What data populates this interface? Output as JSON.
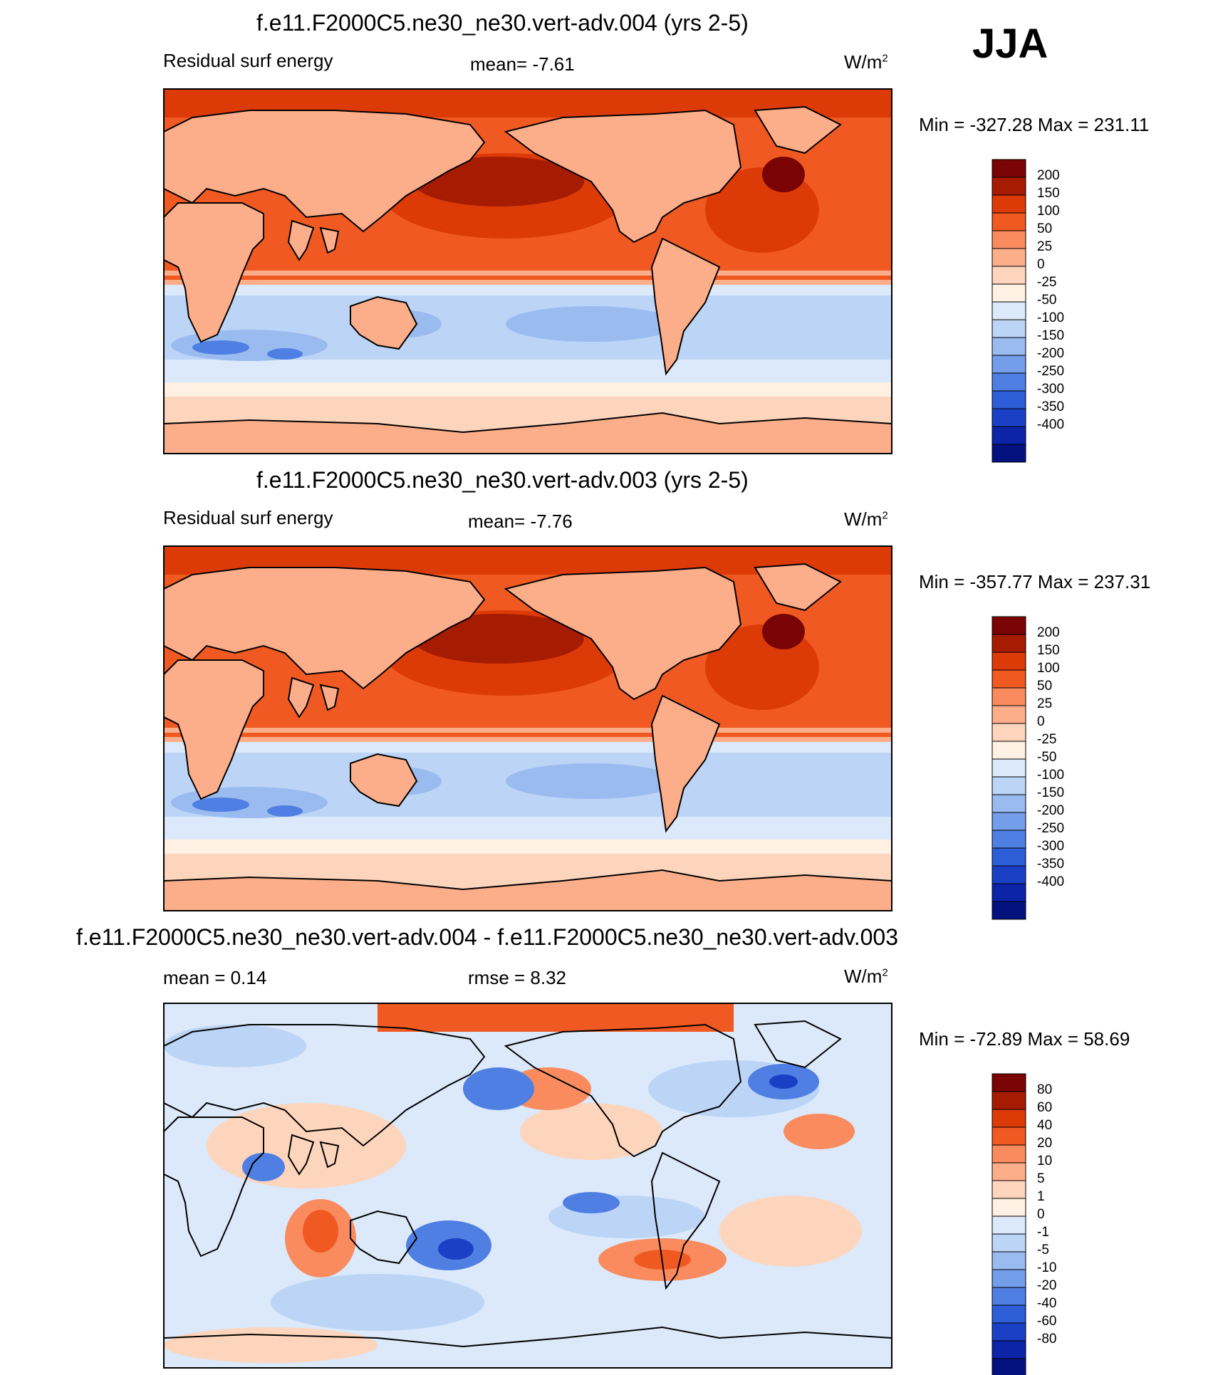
{
  "season": "JJA",
  "units_base": "W/m",
  "units_exp": "2",
  "panels": [
    {
      "title": "f.e11.F2000C5.ne30_ne30.vert-adv.004 (yrs 2-5)",
      "left_label": "Residual surf energy",
      "center_label": "mean=  -7.61",
      "minmax": "Min = -327.28 Max = 231.11"
    },
    {
      "title": "f.e11.F2000C5.ne30_ne30.vert-adv.003 (yrs 2-5)",
      "left_label": "Residual surf energy",
      "center_label": "mean=  -7.76",
      "minmax": "Min = -357.77 Max = 237.31"
    },
    {
      "title": "f.e11.F2000C5.ne30_ne30.vert-adv.004 - f.e11.F2000C5.ne30_ne30.vert-adv.003",
      "left_label": "mean =   0.14",
      "center_label": "rmse =   8.32",
      "minmax": "Min = -72.89 Max =  58.69"
    }
  ],
  "colors": {
    "abs_scale": [
      "#7a0403",
      "#a61c03",
      "#dc3b08",
      "#f05a22",
      "#f98b5e",
      "#fcae8a",
      "#fdd5bd",
      "#fef0e2",
      "#dbe9fa",
      "#bcd4f6",
      "#99bbf0",
      "#749ee9",
      "#4f7fe2",
      "#2d5ed8",
      "#1a40c6",
      "#0c24a8",
      "#03127f"
    ],
    "diff_scale": [
      "#7a0403",
      "#a61c03",
      "#dc3b08",
      "#f05a22",
      "#f98b5e",
      "#fcae8a",
      "#fdd5bd",
      "#fef0e2",
      "#dbe9fa",
      "#bcd4f6",
      "#99bbf0",
      "#749ee9",
      "#4f7fe2",
      "#2d5ed8",
      "#1a40c6",
      "#0c24a8",
      "#03127f"
    ]
  },
  "chart_data": [
    {
      "type": "heatmap",
      "title": "f.e11.F2000C5.ne30_ne30.vert-adv.004 (yrs 2-5)",
      "variable": "Residual surf energy",
      "units": "W/m2",
      "mean": -7.61,
      "min": -327.28,
      "max": 231.11,
      "colorbar_levels": [
        "200",
        "150",
        "100",
        "50",
        "25",
        "0",
        "-25",
        "-50",
        "-100",
        "-150",
        "-200",
        "-250",
        "-300",
        "-350",
        "-400"
      ]
    },
    {
      "type": "heatmap",
      "title": "f.e11.F2000C5.ne30_ne30.vert-adv.003 (yrs 2-5)",
      "variable": "Residual surf energy",
      "units": "W/m2",
      "mean": -7.76,
      "min": -357.77,
      "max": 237.31,
      "colorbar_levels": [
        "200",
        "150",
        "100",
        "50",
        "25",
        "0",
        "-25",
        "-50",
        "-100",
        "-150",
        "-200",
        "-250",
        "-300",
        "-350",
        "-400"
      ]
    },
    {
      "type": "heatmap",
      "title": "f.e11.F2000C5.ne30_ne30.vert-adv.004 - f.e11.F2000C5.ne30_ne30.vert-adv.003",
      "units": "W/m2",
      "mean": 0.14,
      "rmse": 8.32,
      "min": -72.89,
      "max": 58.69,
      "colorbar_levels": [
        "80",
        "60",
        "40",
        "20",
        "10",
        "5",
        "1",
        "0",
        "-1",
        "-5",
        "-10",
        "-20",
        "-40",
        "-60",
        "-80"
      ]
    }
  ]
}
